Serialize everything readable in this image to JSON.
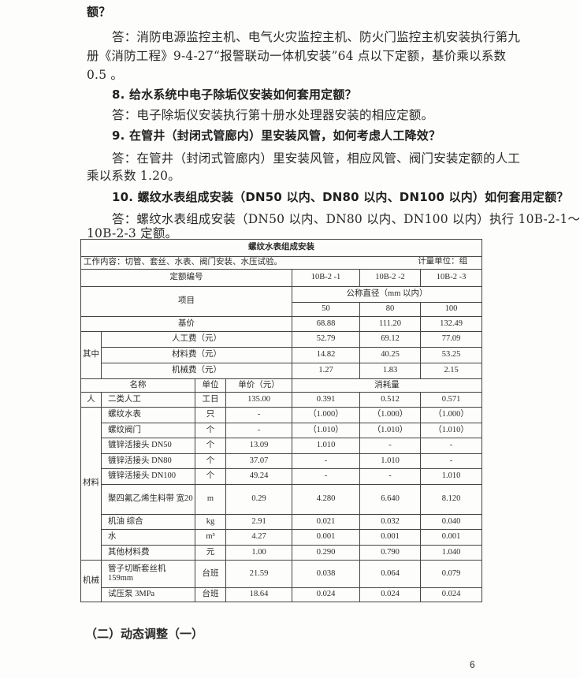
{
  "text": {
    "l1": "额？",
    "l2": "答：消防电源监控主机、电气火灾监控主机、防火门监控主机安装执行第九",
    "l3": "册《消防工程》9-4-27“报警联动一体机安装”64 点以下定额，基价乘以系数",
    "l4": "0.5 。",
    "q8": "8. 给水系统中电子除垢仪安装如何套用定额？",
    "a8": "答：电子除垢仪安装执行第十册水处理器安装的相应定额。",
    "q9": "9. 在管井（封闭式管廊内）里安装风管，如何考虑人工降效？",
    "a9a": "答：在管井（封闭式管廊内）里安装风管，相应风管、阀门安装定额的人工",
    "a9b": "乘以系数 1.20。",
    "q10": "10. 螺纹水表组成安装（DN50 以内、DN80 以内、DN100 以内）如何套用定额？",
    "a10a": "答：螺纹水表组成安装（DN50 以内、DN80 以内、DN100 以内）执行 10B-2-1～",
    "a10b": "10B-2-3 定额。"
  },
  "table": {
    "title": "螺纹水表组成安装",
    "work": "工作内容：切管、套丝、水表、阀门安装、水压试验。",
    "unit": "计量单位：组",
    "code_label": "定额编号",
    "codes": [
      "10B-2 -1",
      "10B-2 -2",
      "10B-2 -3"
    ],
    "item_label": "项目",
    "diameter_label": "公称直径（mm 以内）",
    "diameters": [
      "50",
      "80",
      "100"
    ],
    "base_label": "基价",
    "base": [
      "68.88",
      "111.20",
      "132.49"
    ],
    "of_which": "其中",
    "costs": [
      {
        "name": "人工费（元）",
        "v": [
          "52.79",
          "69.12",
          "77.09"
        ]
      },
      {
        "name": "材料费（元）",
        "v": [
          "14.82",
          "40.25",
          "53.25"
        ]
      },
      {
        "name": "机械费（元）",
        "v": [
          "1.27",
          "1.83",
          "2.15"
        ]
      }
    ],
    "headers": {
      "name": "名称",
      "unit": "单位",
      "price": "单价（元）",
      "consumption": "消耗量"
    },
    "groups": {
      "labor": "人",
      "material": "材料",
      "machine": "机械"
    },
    "labor": [
      {
        "name": "二类人工",
        "unit": "工日",
        "price": "135.00",
        "v": [
          "0.391",
          "0.512",
          "0.571"
        ]
      }
    ],
    "materials": [
      {
        "name": "螺纹水表",
        "unit": "只",
        "price": "-",
        "v": [
          "（1.000）",
          "（1.000）",
          "（1.000）"
        ]
      },
      {
        "name": "螺纹阀门",
        "unit": "个",
        "price": "-",
        "v": [
          "（1.010）",
          "（1.010）",
          "（1.010）"
        ]
      },
      {
        "name": "镀锌活接头 DN50",
        "unit": "个",
        "price": "13.09",
        "v": [
          "1.010",
          "-",
          "-"
        ]
      },
      {
        "name": "镀锌活接头 DN80",
        "unit": "个",
        "price": "37.07",
        "v": [
          "-",
          "1.010",
          "-"
        ]
      },
      {
        "name": "镀锌活接头 DN100",
        "unit": "个",
        "price": "49.24",
        "v": [
          "-",
          "-",
          "1.010"
        ]
      },
      {
        "name": "聚四氟乙烯生料带 宽20",
        "unit": "m",
        "price": "0.29",
        "v": [
          "4.280",
          "6.640",
          "8.120"
        ]
      },
      {
        "name": "机油 综合",
        "unit": "kg",
        "price": "2.91",
        "v": [
          "0.021",
          "0.032",
          "0.040"
        ]
      },
      {
        "name": "水",
        "unit": "m³",
        "price": "4.27",
        "v": [
          "0.001",
          "0.001",
          "0.001"
        ]
      },
      {
        "name": "其他材料费",
        "unit": "元",
        "price": "1.00",
        "v": [
          "0.290",
          "0.790",
          "1.040"
        ]
      }
    ],
    "machines": [
      {
        "name": "管子切断套丝机 159mm",
        "unit": "台班",
        "price": "21.59",
        "v": [
          "0.038",
          "0.064",
          "0.079"
        ]
      },
      {
        "name": "试压泵 3MPa",
        "unit": "台班",
        "price": "18.64",
        "v": [
          "0.024",
          "0.024",
          "0.024"
        ]
      }
    ]
  },
  "footer": {
    "section": "（二）动态调整（一）",
    "page": "6"
  }
}
